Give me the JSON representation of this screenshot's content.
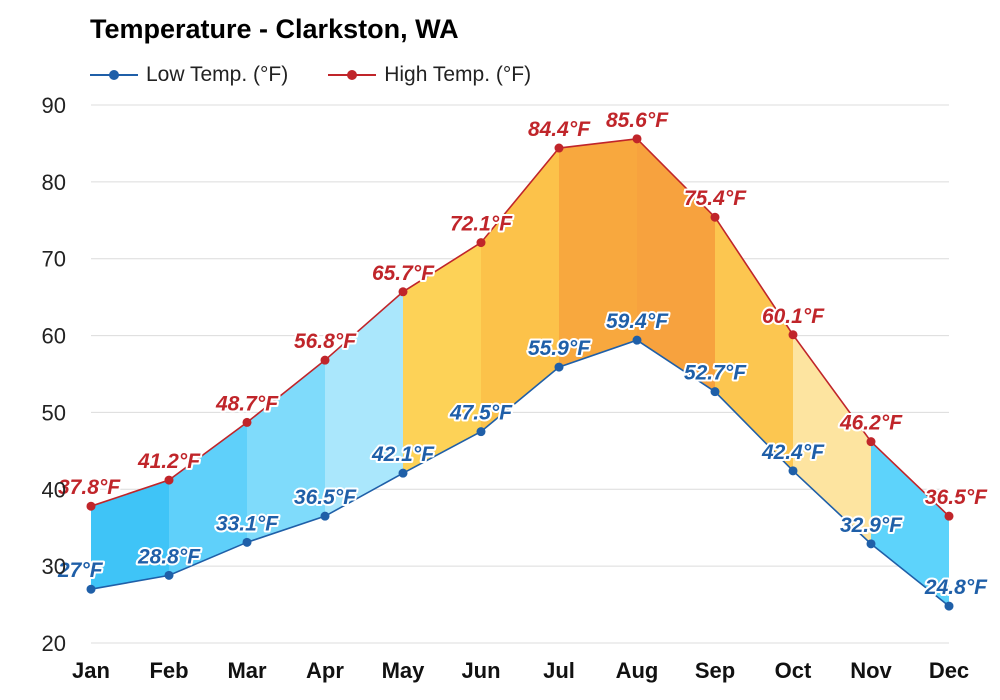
{
  "chart_data": {
    "type": "line",
    "title": "Temperature - Clarkston, WA",
    "categories": [
      "Jan",
      "Feb",
      "Mar",
      "Apr",
      "May",
      "Jun",
      "Jul",
      "Aug",
      "Sep",
      "Oct",
      "Nov",
      "Dec"
    ],
    "series": [
      {
        "name": "Low Temp. (°F)",
        "color": "#1f5fa8",
        "values": [
          27,
          28.8,
          33.1,
          36.5,
          42.1,
          47.5,
          55.9,
          59.4,
          52.7,
          42.4,
          32.9,
          24.8
        ],
        "labels": [
          "27°F",
          "28.8°F",
          "33.1°F",
          "36.5°F",
          "42.1°F",
          "47.5°F",
          "55.9°F",
          "59.4°F",
          "52.7°F",
          "42.4°F",
          "32.9°F",
          "24.8°F"
        ]
      },
      {
        "name": "High Temp. (°F)",
        "color": "#c0252a",
        "values": [
          37.8,
          41.2,
          48.7,
          56.8,
          65.7,
          72.1,
          84.4,
          85.6,
          75.4,
          60.1,
          46.2,
          36.5
        ],
        "labels": [
          "37.8°F",
          "41.2°F",
          "48.7°F",
          "56.8°F",
          "65.7°F",
          "72.1°F",
          "84.4°F",
          "85.6°F",
          "75.4°F",
          "60.1°F",
          "46.2°F",
          "36.5°F"
        ]
      }
    ],
    "band_colors": [
      "#3fc4f7",
      "#5fd0fa",
      "#7fdbfb",
      "#aae7fc",
      "#fdd257",
      "#fcc24a",
      "#f8a83e",
      "#f7a23e",
      "#fcc650",
      "#fde4a0",
      "#5dd3fb",
      "#3fc4f7"
    ],
    "ylim": [
      20,
      90
    ],
    "yticks": [
      20,
      30,
      40,
      50,
      60,
      70,
      80,
      90
    ],
    "ytick_labels": [
      "20",
      "30",
      "40",
      "50",
      "60",
      "70",
      "80",
      "90"
    ],
    "grid": true,
    "legend": "top-left"
  }
}
